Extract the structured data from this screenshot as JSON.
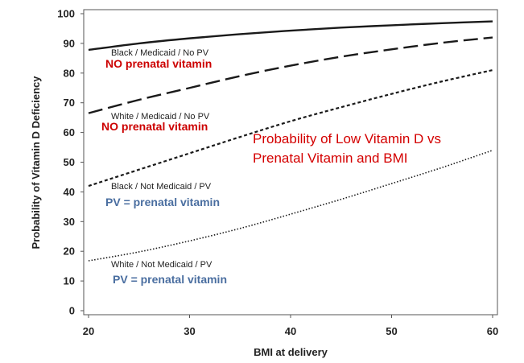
{
  "chart_data": {
    "type": "line",
    "title": [
      "Probability of Low Vitamin D vs",
      "Prenatal Vitamin and BMI"
    ],
    "xlabel": "BMI at delivery",
    "ylabel": "Probability of Vitamin D Deficiency",
    "xlim": [
      20,
      60
    ],
    "ylim": [
      0,
      100
    ],
    "x_ticks": [
      20,
      30,
      40,
      50,
      60
    ],
    "y_ticks": [
      0,
      10,
      20,
      30,
      40,
      50,
      60,
      70,
      80,
      90,
      100
    ],
    "x": [
      20,
      25,
      30,
      35,
      40,
      45,
      50,
      55,
      60
    ],
    "series": [
      {
        "name": "Black / Medicaid / No PV",
        "note": "NO prenatal vitamin",
        "style": "solid",
        "values": [
          87.8,
          90.0,
          91.7,
          93.1,
          94.3,
          95.3,
          96.1,
          96.8,
          97.4
        ]
      },
      {
        "name": "White / Medicaid / No PV",
        "note": "NO prenatal vitamin",
        "style": "dashed",
        "values": [
          66.5,
          71.0,
          75.0,
          79.0,
          82.5,
          85.5,
          88.0,
          90.2,
          92.0
        ]
      },
      {
        "name": "Black / Not Medicaid / PV",
        "note": "PV = prenatal vitamin",
        "style": "dotted-coarse",
        "values": [
          42.0,
          47.5,
          53.0,
          58.5,
          63.8,
          68.5,
          73.0,
          77.2,
          81.0
        ]
      },
      {
        "name": "White / Not Medicaid / PV",
        "note": "PV = prenatal vitamin",
        "style": "dotted-fine",
        "values": [
          16.8,
          19.8,
          23.5,
          27.7,
          32.5,
          37.5,
          42.8,
          48.2,
          54.0
        ]
      }
    ]
  },
  "colors": {
    "note_red": "#cc0000",
    "note_blue": "#4a6ea0",
    "title_red": "#d40000",
    "line": "#1a1a1a"
  }
}
